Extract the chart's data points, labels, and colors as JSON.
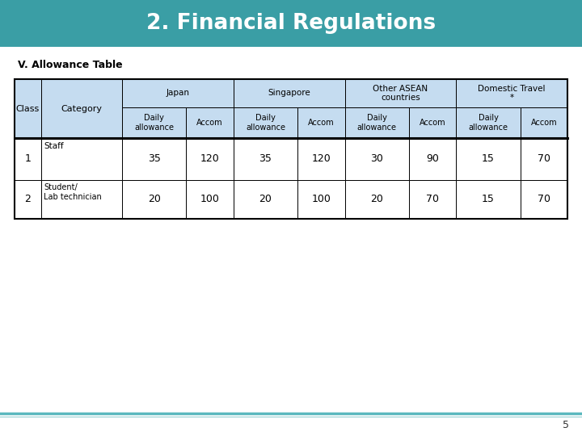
{
  "title": "2. Financial Regulations",
  "title_bg_color": "#3A9EA5",
  "title_text_color": "#FFFFFF",
  "subtitle": "V. Allowance Table",
  "page_number": "5",
  "footer_line_color": "#5BB8BE",
  "footer_line2_color": "#A8D8DA",
  "table": {
    "header_bg": "#C5DCF0",
    "border_color": "#000000",
    "thick_line_color": "#000000",
    "col_groups": [
      {
        "label": "Japan",
        "span": 2
      },
      {
        "label": "Singapore",
        "span": 2
      },
      {
        "label": "Other ASEAN\ncountries",
        "span": 2
      },
      {
        "label": "Domestic Travel\n*",
        "span": 2
      }
    ],
    "sub_headers": [
      "Daily\nallowance",
      "Accom",
      "Daily\nallowance",
      "Accom",
      "Daily\nallowance",
      "Accom",
      "Daily\nallowance",
      "Accom"
    ],
    "row_headers": [
      {
        "class": "1",
        "category": "Staff"
      },
      {
        "class": "2",
        "category": "Student/\nLab technician"
      }
    ],
    "data": [
      [
        35,
        120,
        35,
        120,
        30,
        90,
        15,
        70
      ],
      [
        20,
        100,
        20,
        100,
        20,
        70,
        15,
        70
      ]
    ]
  }
}
